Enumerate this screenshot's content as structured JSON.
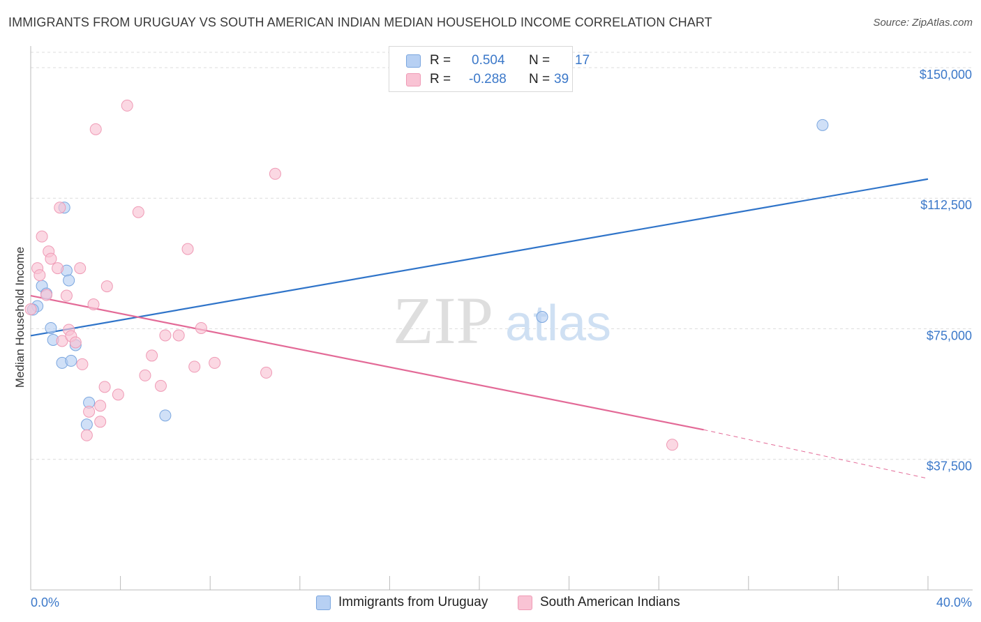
{
  "header": {
    "title": "IMMIGRANTS FROM URUGUAY VS SOUTH AMERICAN INDIAN MEDIAN HOUSEHOLD INCOME CORRELATION CHART",
    "source": "Source: ZipAtlas.com"
  },
  "legend": {
    "r_label": "R =",
    "n_label": "N =",
    "uruguay": {
      "r": "0.504",
      "n": "17"
    },
    "sai": {
      "r": "-0.288",
      "n": "39"
    }
  },
  "watermark": {
    "zip": "ZIP",
    "atlas": "atlas"
  },
  "colors": {
    "uruguay_fill": "#b7d0f3",
    "uruguay_stroke": "#7aa6df",
    "uruguay_line": "#2f74c9",
    "sai_fill": "#f9c3d4",
    "sai_stroke": "#ef9ab5",
    "sai_line": "#e36a97",
    "tick_text": "#3b78c9",
    "grid": "#dcdcdc"
  },
  "chart_data": {
    "type": "scatter",
    "title": "IMMIGRANTS FROM URUGUAY VS SOUTH AMERICAN INDIAN MEDIAN HOUSEHOLD INCOME CORRELATION CHART",
    "xlabel": "",
    "ylabel": "Median Household Income",
    "xlim": [
      0,
      40
    ],
    "ylim": [
      0,
      155000
    ],
    "x_tick_labels": [
      "0.0%",
      "40.0%"
    ],
    "y_ticks": [
      37500,
      75000,
      112500,
      150000
    ],
    "y_tick_labels": [
      "$37,500",
      "$75,000",
      "$112,500",
      "$150,000"
    ],
    "grid": true,
    "series": [
      {
        "name": "Immigrants from Uruguay",
        "points": [
          [
            0.3,
            81500
          ],
          [
            0.5,
            87300
          ],
          [
            0.7,
            85100
          ],
          [
            0.9,
            75200
          ],
          [
            1.0,
            71800
          ],
          [
            1.4,
            65200
          ],
          [
            1.5,
            109800
          ],
          [
            1.6,
            91700
          ],
          [
            1.7,
            88900
          ],
          [
            1.8,
            65800
          ],
          [
            2.0,
            70300
          ],
          [
            2.5,
            47500
          ],
          [
            2.6,
            53800
          ],
          [
            6.0,
            50100
          ],
          [
            22.8,
            78400
          ],
          [
            35.3,
            133500
          ],
          [
            0.1,
            80500
          ]
        ],
        "trend": {
          "x0": 0,
          "y0": 73000,
          "x1": 40,
          "y1": 118000
        }
      },
      {
        "name": "South American Indians",
        "points": [
          [
            0.3,
            92400
          ],
          [
            0.4,
            90400
          ],
          [
            0.5,
            101500
          ],
          [
            0.7,
            84700
          ],
          [
            0.8,
            97200
          ],
          [
            0.9,
            95100
          ],
          [
            1.2,
            92400
          ],
          [
            1.3,
            109800
          ],
          [
            1.4,
            71500
          ],
          [
            1.6,
            84500
          ],
          [
            1.7,
            74700
          ],
          [
            1.8,
            72900
          ],
          [
            2.0,
            71100
          ],
          [
            2.2,
            92400
          ],
          [
            2.3,
            64800
          ],
          [
            2.5,
            44400
          ],
          [
            2.6,
            51200
          ],
          [
            2.8,
            82000
          ],
          [
            2.9,
            132300
          ],
          [
            3.1,
            52900
          ],
          [
            3.1,
            48300
          ],
          [
            3.3,
            58300
          ],
          [
            3.4,
            87200
          ],
          [
            3.9,
            56100
          ],
          [
            4.3,
            139100
          ],
          [
            4.8,
            108500
          ],
          [
            5.1,
            61600
          ],
          [
            5.4,
            67300
          ],
          [
            5.8,
            58600
          ],
          [
            6.0,
            73100
          ],
          [
            6.6,
            73100
          ],
          [
            7.0,
            97900
          ],
          [
            7.3,
            64100
          ],
          [
            7.6,
            75200
          ],
          [
            8.2,
            65200
          ],
          [
            10.5,
            62400
          ],
          [
            10.9,
            119500
          ],
          [
            28.6,
            41700
          ],
          [
            0.0,
            80600
          ]
        ],
        "trend": {
          "x0": 0,
          "y0": 84500,
          "x1": 30,
          "y1": 46000,
          "dashed_to_x": 40,
          "dashed_to_y": 32000
        }
      }
    ]
  },
  "bottom_legend": {
    "uruguay": "Immigrants from Uruguay",
    "sai": "South American Indians"
  }
}
